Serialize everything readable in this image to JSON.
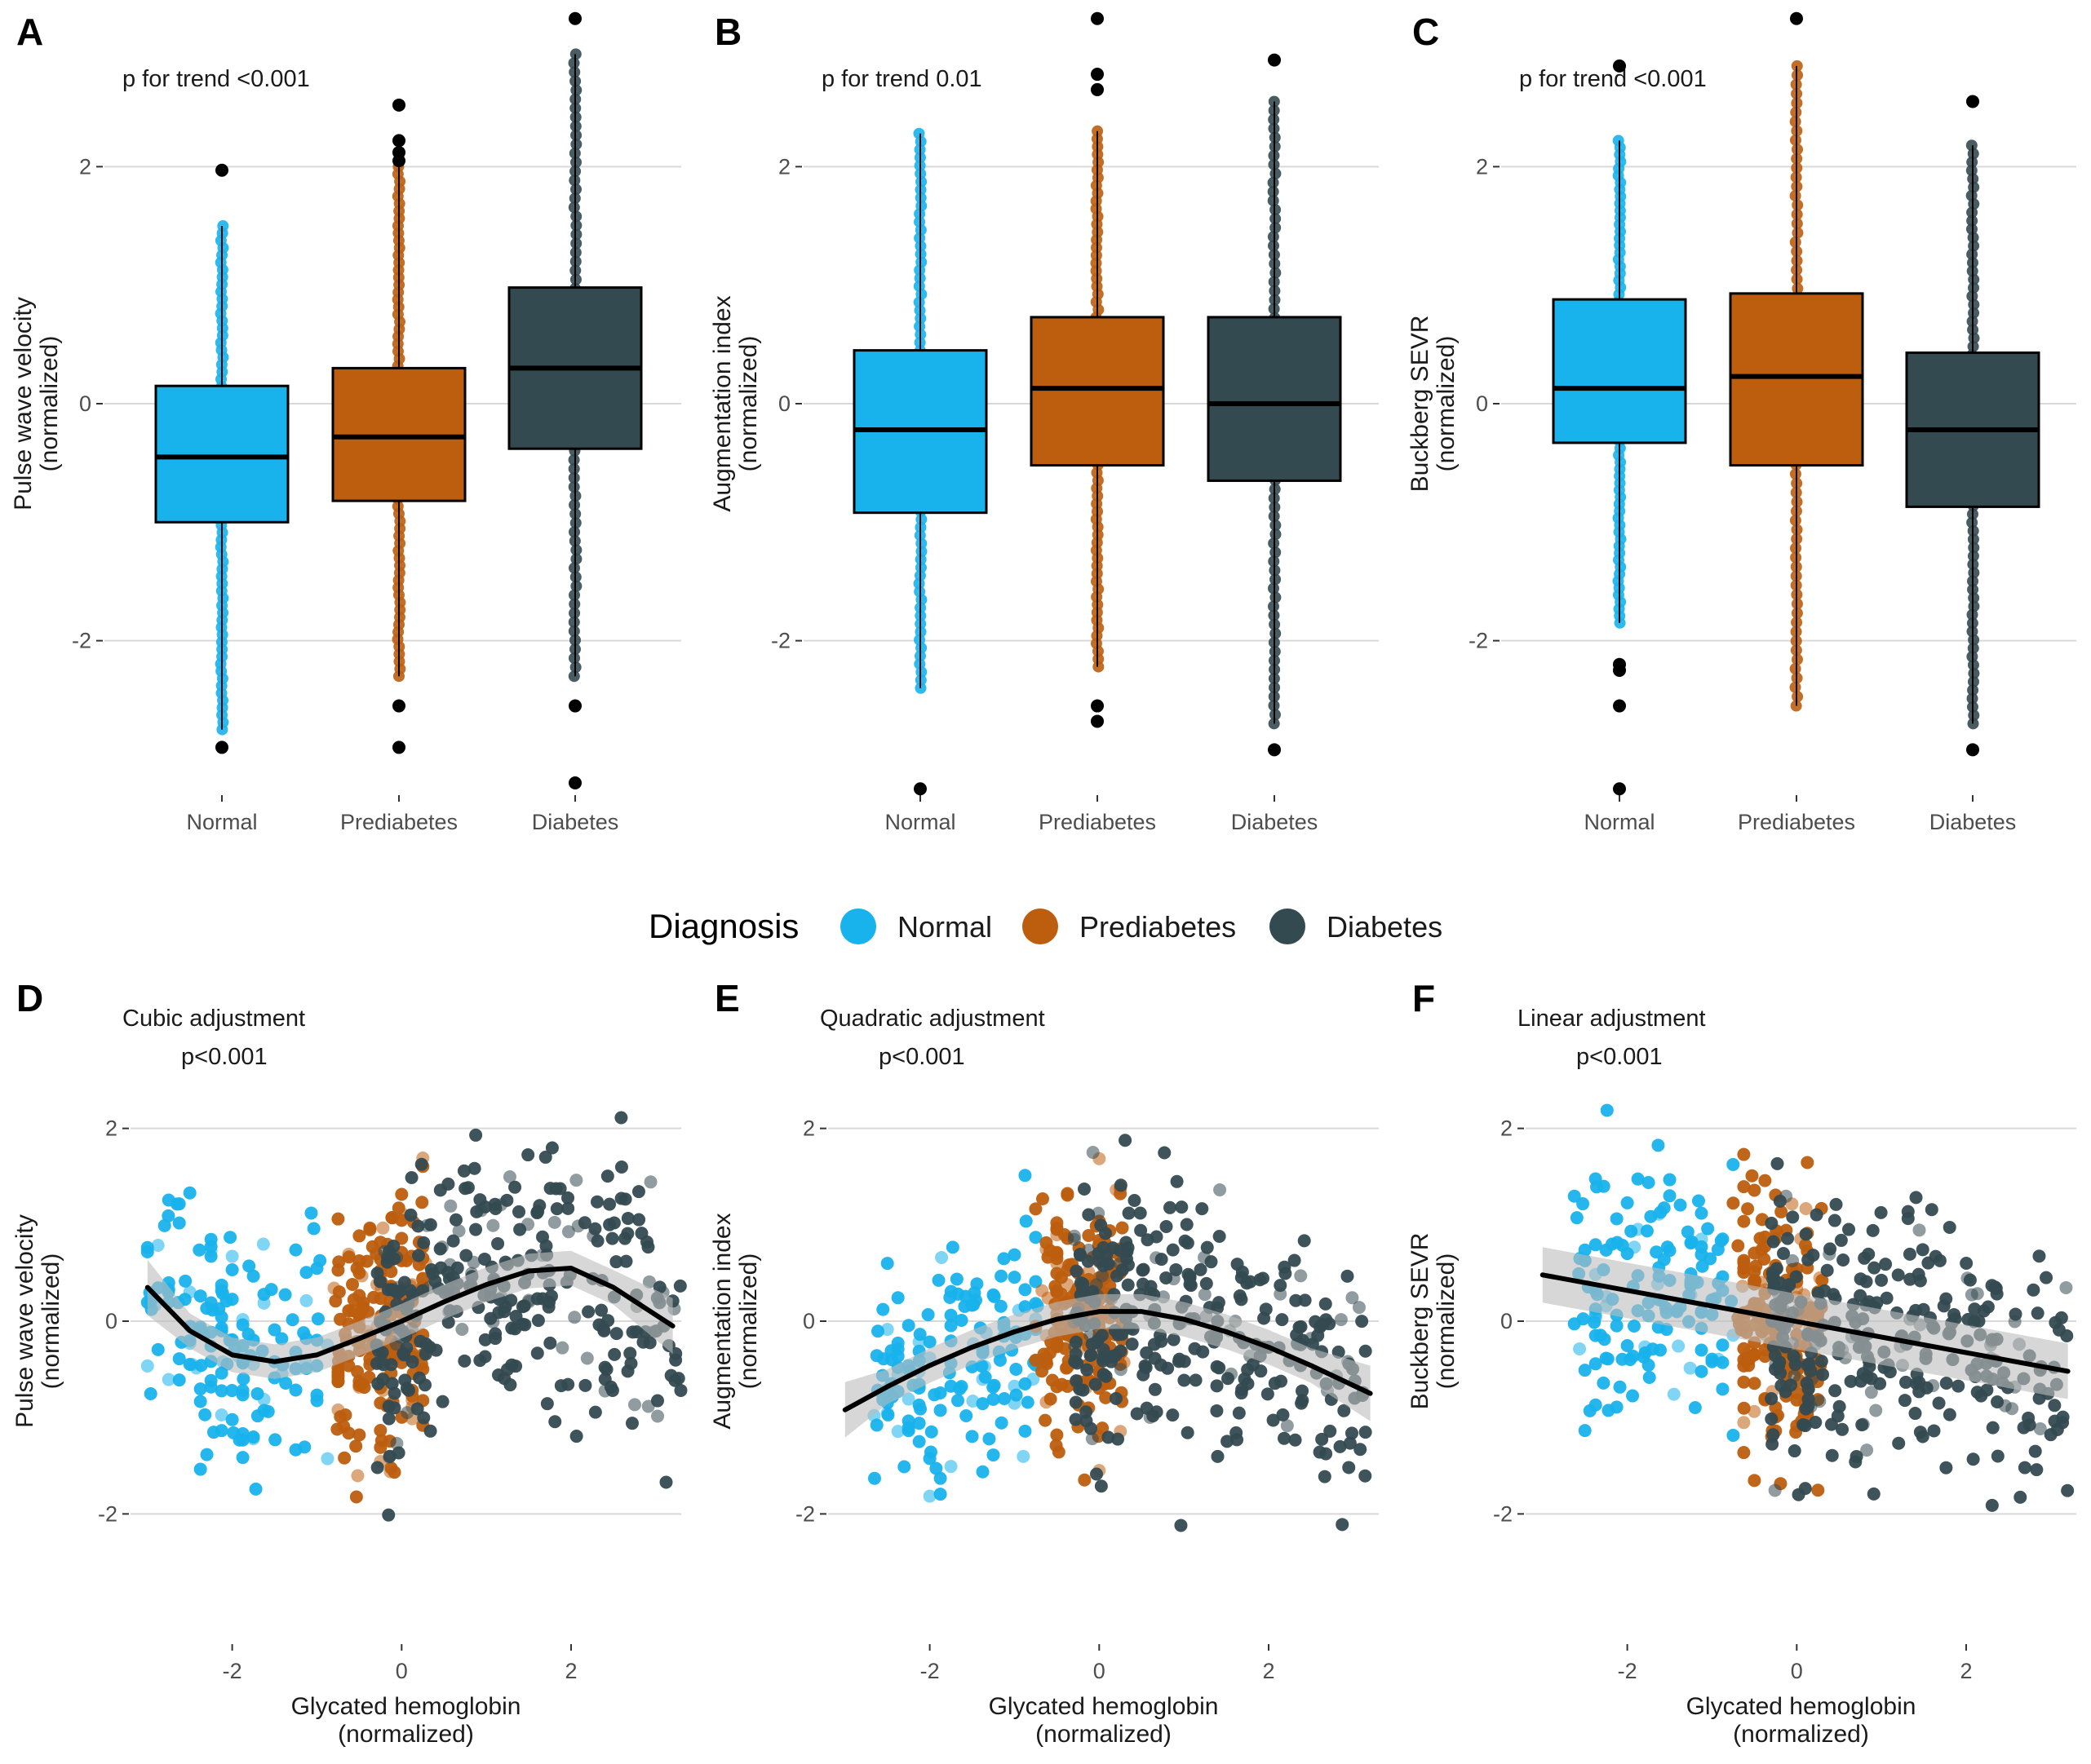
{
  "colors": {
    "Normal": "#18b2ec",
    "Prediabetes": "#bd5e0f",
    "Diabetes": "#344a51",
    "outlier": "#000000",
    "median": "#000000",
    "fit_line": "#000000",
    "ci_band": "#bdbdbd"
  },
  "legend": {
    "title": "Diagnosis",
    "items": [
      {
        "label": "Normal",
        "color": "#18b2ec"
      },
      {
        "label": "Prediabetes",
        "color": "#bd5e0f"
      },
      {
        "label": "Diabetes",
        "color": "#344a51"
      }
    ]
  },
  "chart_data": [
    {
      "panel": "A",
      "type": "box",
      "annotation": "p for trend <0.001",
      "ylabel": [
        "Pulse wave velocity",
        "(normalized)"
      ],
      "ylim": [
        -3.2,
        3.2
      ],
      "yticks": [
        -2,
        0,
        2
      ],
      "categories": [
        "Normal",
        "Prediabetes",
        "Diabetes"
      ],
      "boxes": [
        {
          "q1": -1.0,
          "median": -0.45,
          "q3": 0.15,
          "whisker_low": -2.75,
          "whisker_high": 1.5,
          "outliers": [
            1.97,
            -2.9
          ]
        },
        {
          "q1": -0.82,
          "median": -0.28,
          "q3": 0.3,
          "whisker_low": -2.3,
          "whisker_high": 2.0,
          "outliers": [
            2.52,
            2.22,
            2.12,
            2.05,
            -2.55,
            -2.9
          ]
        },
        {
          "q1": -0.38,
          "median": 0.3,
          "q3": 0.98,
          "whisker_low": -2.3,
          "whisker_high": 2.95,
          "outliers": [
            3.25,
            -2.55,
            -3.2
          ]
        }
      ]
    },
    {
      "panel": "B",
      "type": "box",
      "annotation": "p for trend 0.01",
      "ylabel": [
        "Augmentation index",
        "(normalized)"
      ],
      "ylim": [
        -3.2,
        3.2
      ],
      "yticks": [
        -2,
        0,
        2
      ],
      "categories": [
        "Normal",
        "Prediabetes",
        "Diabetes"
      ],
      "boxes": [
        {
          "q1": -0.92,
          "median": -0.22,
          "q3": 0.45,
          "whisker_low": -2.4,
          "whisker_high": 2.28,
          "outliers": [
            -3.25
          ]
        },
        {
          "q1": -0.52,
          "median": 0.13,
          "q3": 0.73,
          "whisker_low": -2.22,
          "whisker_high": 2.3,
          "outliers": [
            3.25,
            2.78,
            2.65,
            -2.55,
            -2.68
          ]
        },
        {
          "q1": -0.65,
          "median": 0.0,
          "q3": 0.73,
          "whisker_low": -2.7,
          "whisker_high": 2.55,
          "outliers": [
            2.9,
            -2.92
          ]
        }
      ]
    },
    {
      "panel": "C",
      "type": "box",
      "annotation": "p for trend <0.001",
      "ylabel": [
        "Buckberg SEVR",
        "(normalized)"
      ],
      "ylim": [
        -3.2,
        3.2
      ],
      "yticks": [
        -2,
        0,
        2
      ],
      "categories": [
        "Normal",
        "Prediabetes",
        "Diabetes"
      ],
      "boxes": [
        {
          "q1": -0.33,
          "median": 0.13,
          "q3": 0.88,
          "whisker_low": -1.85,
          "whisker_high": 2.22,
          "outliers": [
            2.85,
            -2.2,
            -2.25,
            -2.55,
            -3.25
          ]
        },
        {
          "q1": -0.52,
          "median": 0.23,
          "q3": 0.93,
          "whisker_low": -2.55,
          "whisker_high": 2.85,
          "outliers": [
            3.25
          ]
        },
        {
          "q1": -0.87,
          "median": -0.22,
          "q3": 0.43,
          "whisker_low": -2.7,
          "whisker_high": 2.18,
          "outliers": [
            2.55,
            -2.92
          ]
        }
      ]
    },
    {
      "panel": "D",
      "type": "scatter",
      "fit": "cubic",
      "annotation": [
        "Cubic adjustment",
        "p<0.001"
      ],
      "xlabel": [
        "Glycated hemoglobin",
        "(normalized)"
      ],
      "ylabel": [
        "Pulse wave velocity",
        "(normalized)"
      ],
      "xlim": [
        -3.2,
        3.3
      ],
      "ylim": [
        -3.3,
        3.3
      ],
      "xticks": [
        -2,
        0,
        2
      ],
      "yticks": [
        -2,
        0,
        2
      ],
      "ranges": {
        "Normal": [
          -3.0,
          -0.9
        ],
        "Prediabetes": [
          -0.8,
          0.3
        ],
        "Diabetes": [
          -0.3,
          3.3
        ]
      },
      "fit_points": {
        "x": [
          -3.0,
          -2.5,
          -2.0,
          -1.5,
          -1.0,
          -0.5,
          0.0,
          0.5,
          1.0,
          1.5,
          2.0,
          2.5,
          3.2
        ],
        "y": [
          0.35,
          -0.1,
          -0.35,
          -0.42,
          -0.35,
          -0.18,
          0.0,
          0.2,
          0.38,
          0.52,
          0.55,
          0.35,
          -0.05
        ]
      }
    },
    {
      "panel": "E",
      "type": "scatter",
      "fit": "quadratic",
      "annotation": [
        "Quadratic adjustment",
        "p<0.001"
      ],
      "xlabel": [
        "Glycated hemoglobin",
        "(normalized)"
      ],
      "ylabel": [
        "Augmentation index",
        "(normalized)"
      ],
      "xlim": [
        -3.2,
        3.3
      ],
      "ylim": [
        -3.3,
        3.3
      ],
      "xticks": [
        -2,
        0,
        2
      ],
      "yticks": [
        -2,
        0,
        2
      ],
      "ranges": {
        "Normal": [
          -2.7,
          -0.7
        ],
        "Prediabetes": [
          -0.7,
          0.3
        ],
        "Diabetes": [
          -0.3,
          3.2
        ]
      },
      "fit_points": {
        "x": [
          -3.0,
          -2.5,
          -2.0,
          -1.5,
          -1.0,
          -0.5,
          0.0,
          0.5,
          1.0,
          1.5,
          2.0,
          2.5,
          3.2
        ],
        "y": [
          -0.92,
          -0.68,
          -0.46,
          -0.27,
          -0.11,
          0.02,
          0.1,
          0.1,
          0.02,
          -0.11,
          -0.27,
          -0.46,
          -0.75
        ]
      }
    },
    {
      "panel": "F",
      "type": "scatter",
      "fit": "linear",
      "annotation": [
        "Linear adjustment",
        "p<0.001"
      ],
      "xlabel": [
        "Glycated hemoglobin",
        "(normalized)"
      ],
      "ylabel": [
        "Buckberg SEVR",
        "(normalized)"
      ],
      "xlim": [
        -3.2,
        3.3
      ],
      "ylim": [
        -3.3,
        3.3
      ],
      "xticks": [
        -2,
        0,
        2
      ],
      "yticks": [
        -2,
        0,
        2
      ],
      "ranges": {
        "Normal": [
          -2.6,
          -0.7
        ],
        "Prediabetes": [
          -0.7,
          0.3
        ],
        "Diabetes": [
          -0.3,
          3.2
        ]
      },
      "fit_points": {
        "x": [
          -3.0,
          3.2
        ],
        "y": [
          0.48,
          -0.52
        ]
      }
    }
  ]
}
